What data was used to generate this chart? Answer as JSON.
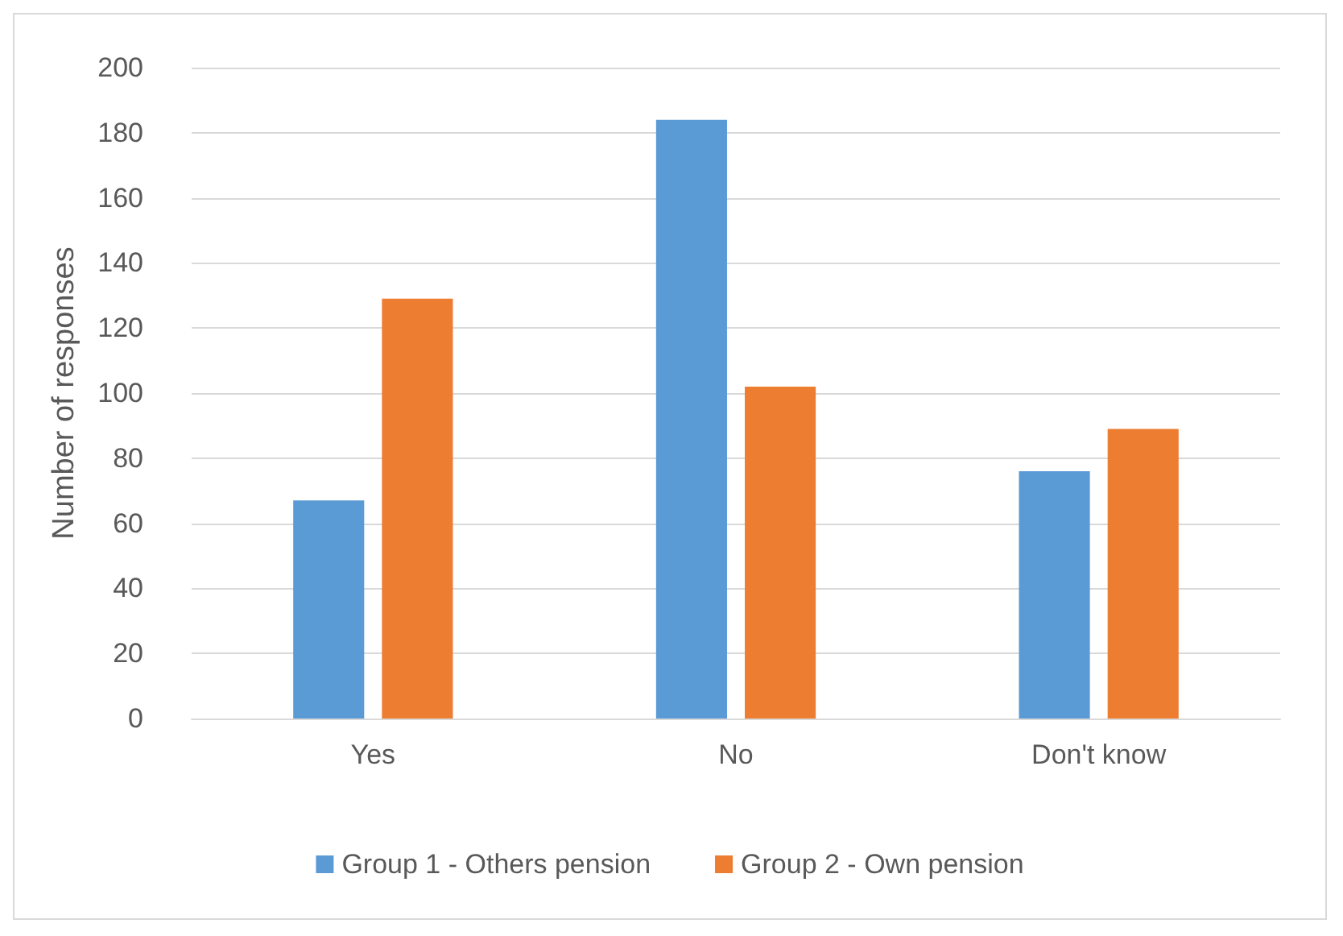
{
  "chart_data": {
    "type": "bar",
    "ylabel": "Number of responses",
    "categories": [
      "Yes",
      "No",
      "Don't know"
    ],
    "series": [
      {
        "name": "Group 1 - Others pension",
        "color": "#5b9bd5",
        "values": [
          67,
          184,
          76
        ]
      },
      {
        "name": "Group 2 - Own pension",
        "color": "#ed7d31",
        "values": [
          129,
          102,
          89
        ]
      }
    ],
    "ylim": [
      0,
      200
    ],
    "yticks": [
      0,
      20,
      40,
      60,
      80,
      100,
      120,
      140,
      160,
      180,
      200
    ],
    "grid": "y",
    "legend": "bottom"
  }
}
